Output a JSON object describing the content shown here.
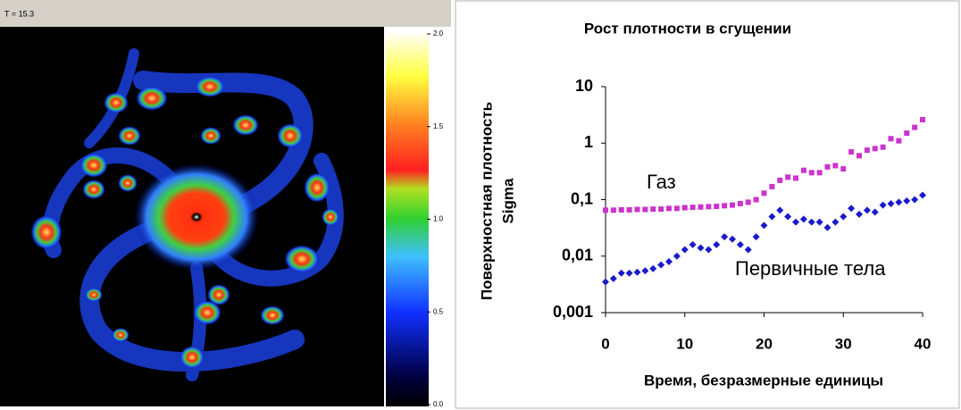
{
  "simulation": {
    "caption": "T = 15.3",
    "colorbar": {
      "ticks": [
        {
          "value": 2,
          "label": "2.0"
        },
        1.5,
        {
          "value": 1,
          "label": "1.0"
        },
        0.5,
        {
          "value": 0,
          "label": "0.0"
        }
      ],
      "lim": [
        0,
        2
      ]
    }
  },
  "chart_data": {
    "type": "scatter",
    "title": "Рост плотности в сгущении",
    "x_label": "Время, безразмерные единицы",
    "y_label": [
      "Поверхностная плотность",
      "Sigma"
    ],
    "x": [
      0,
      1,
      2,
      3,
      4,
      5,
      6,
      7,
      8,
      9,
      10,
      11,
      12,
      13,
      14,
      15,
      16,
      17,
      18,
      19,
      20,
      21,
      22,
      23,
      24,
      25,
      26,
      27,
      28,
      29,
      30,
      31,
      32,
      33,
      34,
      35,
      36,
      37,
      38,
      39,
      40
    ],
    "series": [
      {
        "name": "Газ",
        "color": "#cc33cc",
        "marker": "square",
        "values": [
          0.065,
          0.065,
          0.066,
          0.066,
          0.067,
          0.067,
          0.068,
          0.068,
          0.07,
          0.07,
          0.072,
          0.073,
          0.074,
          0.075,
          0.076,
          0.078,
          0.08,
          0.085,
          0.09,
          0.1,
          0.13,
          0.17,
          0.22,
          0.25,
          0.24,
          0.33,
          0.3,
          0.3,
          0.38,
          0.4,
          0.35,
          0.7,
          0.6,
          0.75,
          0.8,
          0.85,
          1.2,
          1.1,
          1.5,
          1.9,
          2.6
        ]
      },
      {
        "name": "Первичные тела",
        "color": "#1a1acc",
        "marker": "diamond",
        "values": [
          0.0035,
          0.004,
          0.005,
          0.005,
          0.0052,
          0.0055,
          0.006,
          0.007,
          0.008,
          0.01,
          0.013,
          0.016,
          0.014,
          0.013,
          0.016,
          0.022,
          0.02,
          0.016,
          0.013,
          0.022,
          0.035,
          0.05,
          0.065,
          0.05,
          0.04,
          0.045,
          0.04,
          0.04,
          0.032,
          0.04,
          0.05,
          0.07,
          0.055,
          0.065,
          0.06,
          0.08,
          0.085,
          0.09,
          0.095,
          0.1,
          0.12
        ]
      }
    ],
    "xlim": [
      0,
      40
    ],
    "xticks": [
      0,
      10,
      20,
      30,
      40
    ],
    "ylim": [
      0.001,
      10
    ],
    "yscale": "log",
    "yticks": [
      {
        "value": 0.001,
        "label": "0,001"
      },
      {
        "value": 0.01,
        "label": "0,01"
      },
      {
        "value": 0.1,
        "label": "0,1"
      },
      1,
      10
    ]
  }
}
